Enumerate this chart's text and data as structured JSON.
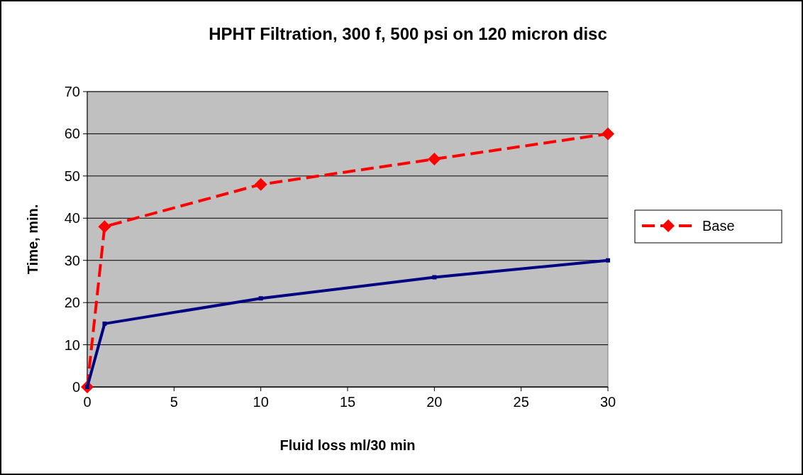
{
  "chart_data": {
    "type": "line",
    "title": "HPHT Filtration, 300 f, 500 psi on 120 micron disc",
    "xlabel": "Fluid loss ml/30 min",
    "ylabel": "Time, min.",
    "x": [
      0,
      1,
      10,
      20,
      30
    ],
    "series": [
      {
        "name": "Base",
        "color": "#ff0000",
        "values": [
          0,
          38,
          48,
          54,
          60
        ],
        "line_style": "dashed",
        "marker": "diamond"
      },
      {
        "color": "#000080",
        "values": [
          0,
          15,
          21,
          26,
          30
        ],
        "line_style": "solid",
        "marker": "square"
      }
    ],
    "xlim": [
      0,
      30
    ],
    "xticks": [
      0,
      5,
      10,
      15,
      20,
      25,
      30
    ],
    "ylim": [
      0,
      70
    ],
    "yticks": [
      0,
      10,
      20,
      30,
      40,
      50,
      60,
      70
    ],
    "grid": "y",
    "legend": "right"
  }
}
